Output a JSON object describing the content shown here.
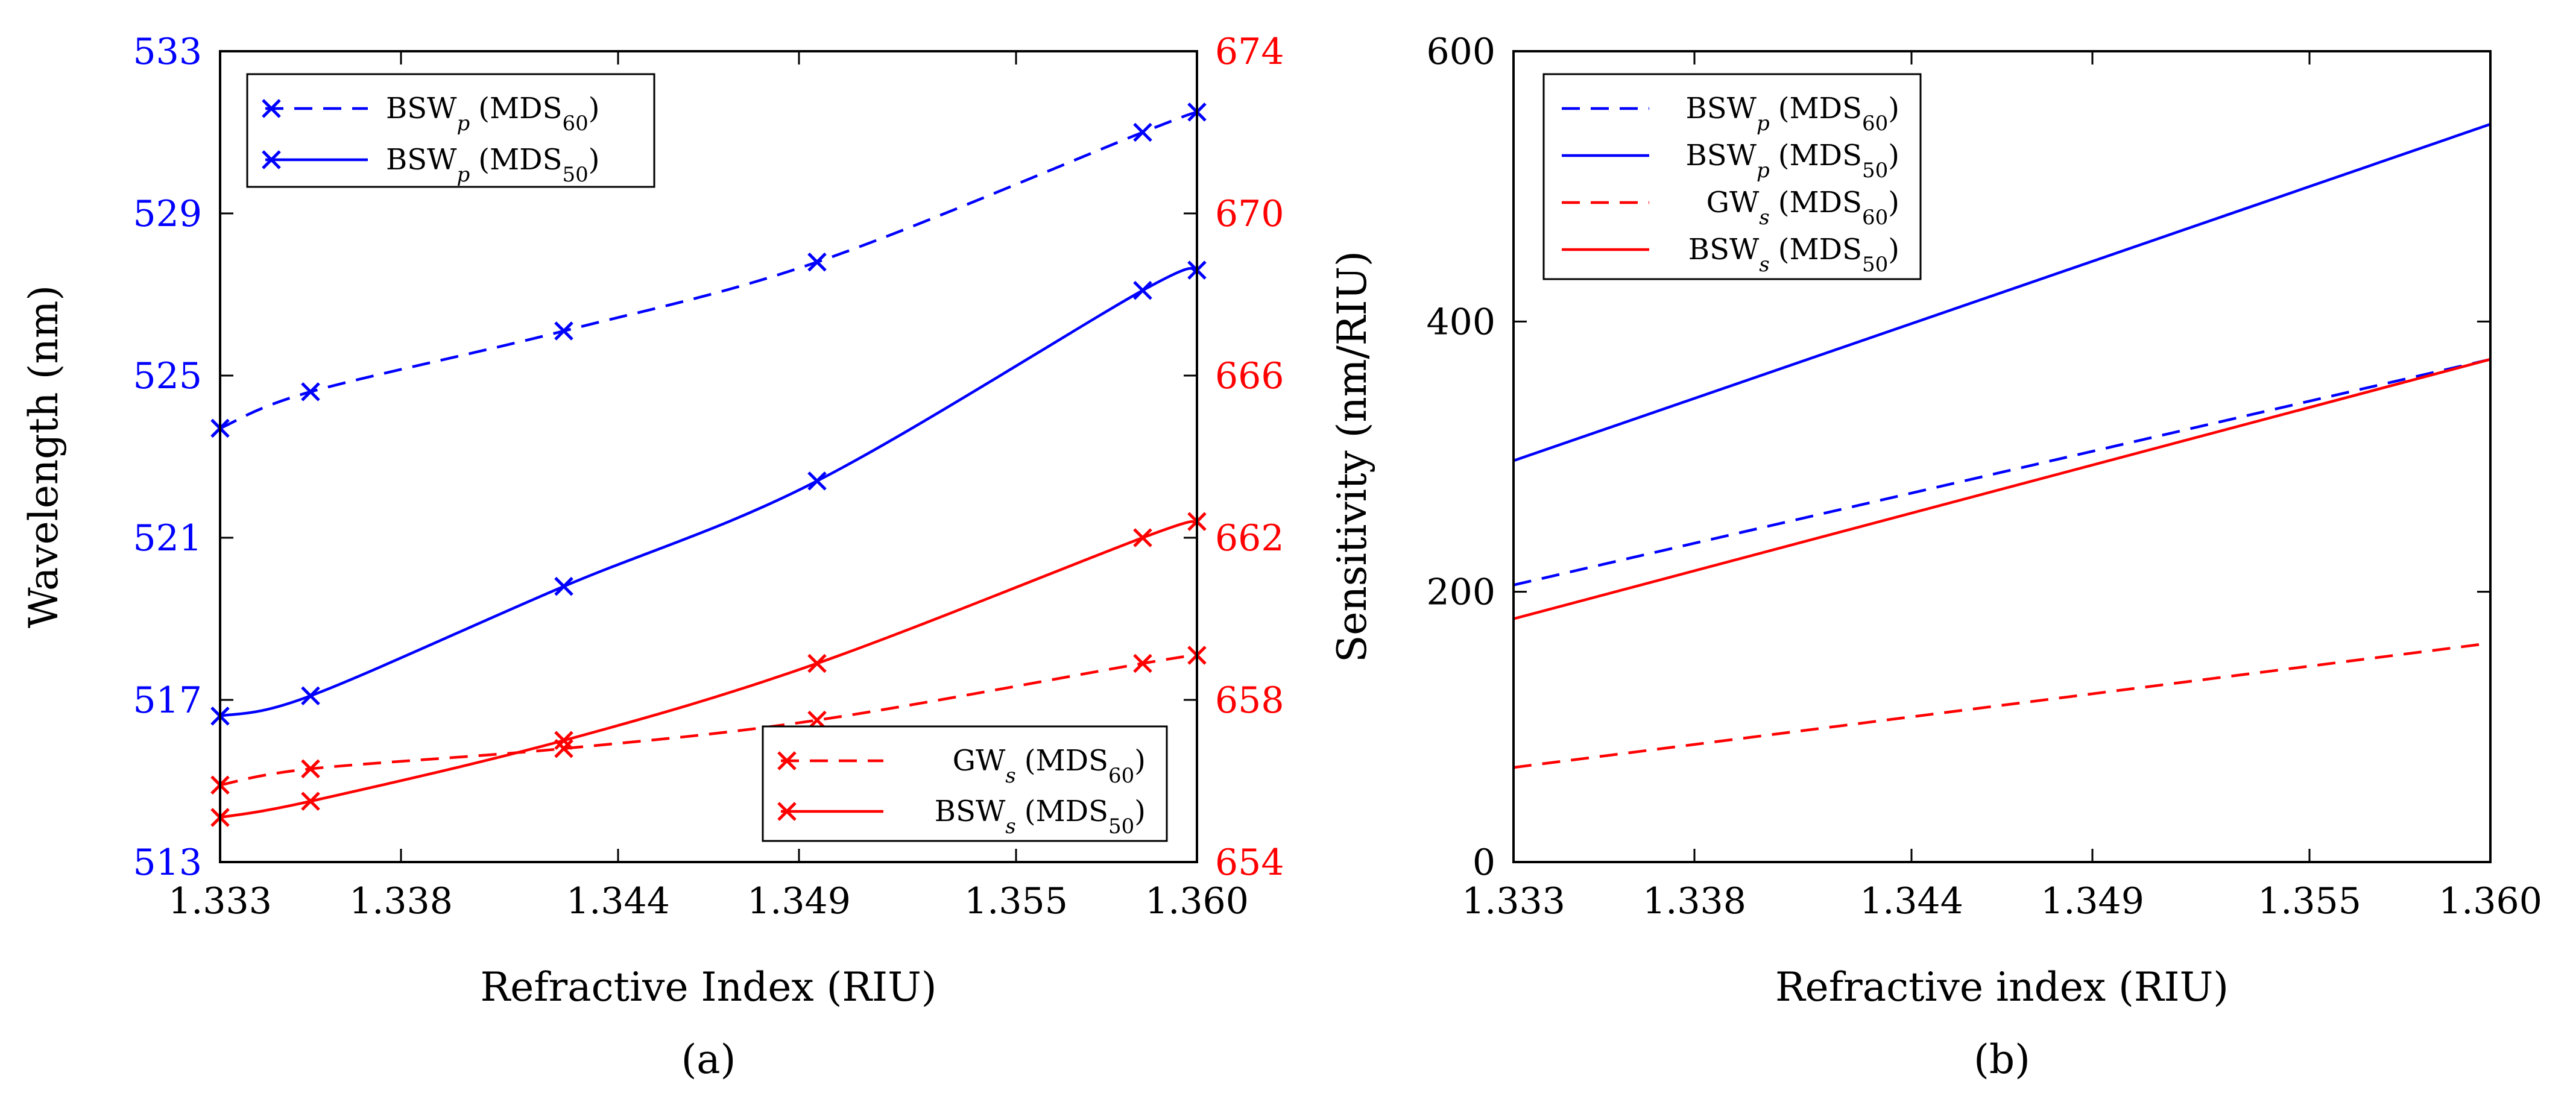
{
  "colors": {
    "blue": "#0000ff",
    "red": "#ff0000",
    "black": "#000000"
  },
  "chart_data": [
    {
      "panel": "a",
      "type": "line",
      "panel_label": "(a)",
      "xlabel": "Refractive Index (RIU)",
      "ylabel_left": "Wavelength (nm)",
      "ylabel_right": "Sensitivity (nm/RIU)",
      "xlim": [
        1.333,
        1.36
      ],
      "x_ticks": [
        "1.333",
        "1.338",
        "1.344",
        "1.349",
        "1.355",
        "1.360"
      ],
      "ylim_left": [
        513,
        533
      ],
      "y_ticks_left": [
        "513",
        "517",
        "521",
        "525",
        "529",
        "533"
      ],
      "ylim_right": [
        654,
        674
      ],
      "y_ticks_right": [
        "654",
        "658",
        "662",
        "666",
        "670",
        "674"
      ],
      "grid": false,
      "series": [
        {
          "name": "BSW_p (MDS60)",
          "legend": "upper-left",
          "legend_main": "BSW",
          "legend_sub": "p",
          "legend_mds": "60",
          "color": "blue",
          "dash": true,
          "marker": "x",
          "axis": "left",
          "x": [
            1.333,
            1.3355,
            1.3425,
            1.3495,
            1.3585,
            1.36
          ],
          "y": [
            523.7,
            524.6,
            526.1,
            527.8,
            531.0,
            531.5
          ]
        },
        {
          "name": "BSW_p (MDS50)",
          "legend": "upper-left",
          "legend_main": "BSW",
          "legend_sub": "p",
          "legend_mds": "50",
          "color": "blue",
          "dash": false,
          "marker": "x",
          "axis": "left",
          "x": [
            1.333,
            1.3355,
            1.3425,
            1.3495,
            1.3585,
            1.36
          ],
          "y": [
            516.6,
            517.1,
            519.8,
            522.4,
            527.1,
            527.6
          ]
        },
        {
          "name": "GW_s (MDS60)",
          "legend": "lower-right",
          "legend_main": "GW",
          "legend_sub": "s",
          "legend_mds": "60",
          "color": "red",
          "dash": true,
          "marker": "x",
          "axis": "right",
          "x": [
            1.333,
            1.3355,
            1.3425,
            1.3495,
            1.3585,
            1.36
          ],
          "y": [
            655.9,
            656.3,
            656.8,
            657.5,
            658.9,
            659.1
          ]
        },
        {
          "name": "BSW_s (MDS50)",
          "legend": "lower-right",
          "legend_main": "BSW",
          "legend_sub": "s",
          "legend_mds": "50",
          "color": "red",
          "dash": false,
          "marker": "x",
          "axis": "right",
          "x": [
            1.333,
            1.3355,
            1.3425,
            1.3495,
            1.3585,
            1.36
          ],
          "y": [
            655.1,
            655.5,
            657.0,
            658.9,
            662.0,
            662.4
          ]
        }
      ]
    },
    {
      "panel": "b",
      "type": "line",
      "panel_label": "(b)",
      "xlabel": "Refractive index (RIU)",
      "ylabel": "Sensitivity (nm/RIU)",
      "xlim": [
        1.333,
        1.36
      ],
      "x_ticks": [
        "1.333",
        "1.338",
        "1.344",
        "1.349",
        "1.355",
        "1.360"
      ],
      "ylim": [
        0,
        600
      ],
      "y_ticks": [
        "0",
        "200",
        "400",
        "600"
      ],
      "grid": false,
      "legend_position": "top-left",
      "series": [
        {
          "name": "BSW_p (MDS60)",
          "legend_main": "BSW",
          "legend_sub": "p",
          "legend_mds": "60",
          "color": "blue",
          "dash": true,
          "x": [
            1.333,
            1.36
          ],
          "y": [
            205,
            372
          ]
        },
        {
          "name": "BSW_p (MDS50)",
          "legend_main": "BSW",
          "legend_sub": "p",
          "legend_mds": "50",
          "color": "blue",
          "dash": false,
          "x": [
            1.333,
            1.36
          ],
          "y": [
            297,
            546
          ]
        },
        {
          "name": "GW_s (MDS60)",
          "legend_main": "GW",
          "legend_sub": "s",
          "legend_mds": "60",
          "color": "red",
          "dash": true,
          "x": [
            1.333,
            1.36
          ],
          "y": [
            70,
            162
          ]
        },
        {
          "name": "BSW_s (MDS50)",
          "legend_main": "BSW",
          "legend_sub": "s",
          "legend_mds": "50",
          "color": "red",
          "dash": false,
          "x": [
            1.333,
            1.36
          ],
          "y": [
            180,
            372
          ]
        }
      ]
    }
  ]
}
